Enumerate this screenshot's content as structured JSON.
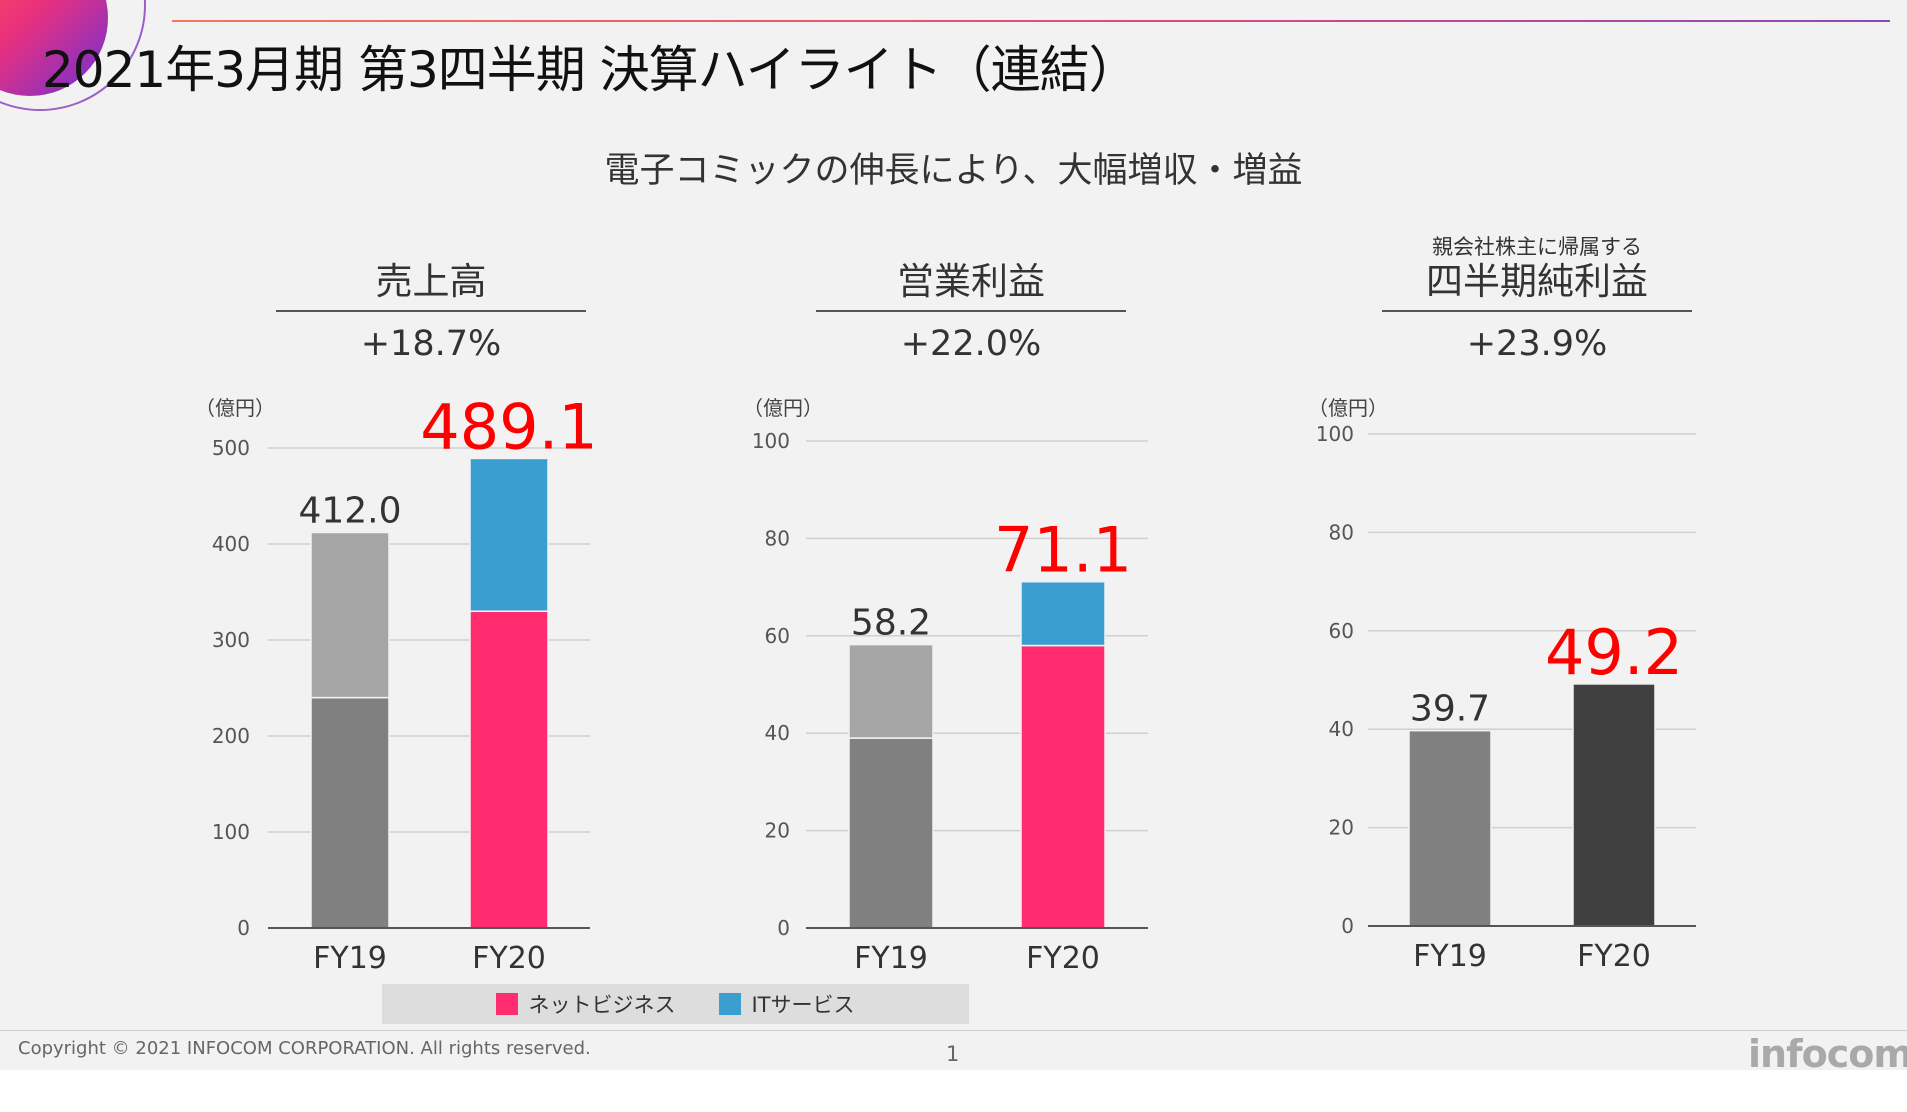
{
  "slide_title": "2021年3月期 第3四半期  決算ハイライト（連結）",
  "subtitle": "電子コミックの伸長により、大幅増収・増益",
  "panels": [
    {
      "pre": "",
      "title": "売上高",
      "growth": "+18.7%"
    },
    {
      "pre": "",
      "title": "営業利益",
      "growth": "+22.0%"
    },
    {
      "pre": "親会社株主に帰属する",
      "title": "四半期純利益",
      "growth": "+23.9%"
    }
  ],
  "colors": {
    "net_business": "#ff2d6f",
    "it_services": "#3a9ed0",
    "fy19_lower": "#808080",
    "fy19_upper": "#a6a6a6",
    "fy20_total": "#404040",
    "highlight": "#ff0000"
  },
  "legend": [
    {
      "label": "ネットビジネス",
      "color": "#ff2d6f"
    },
    {
      "label": "ITサービス",
      "color": "#3a9ed0"
    }
  ],
  "chart_data": [
    {
      "type": "bar",
      "stacked": true,
      "title": "売上高",
      "unit_label": "（億円）",
      "categories": [
        "FY19",
        "FY20"
      ],
      "series": [
        {
          "name": "ネットビジネス",
          "values": [
            240,
            330
          ]
        },
        {
          "name": "ITサービス",
          "values": [
            172,
            159.1
          ]
        }
      ],
      "totals": [
        "412.0",
        "489.1"
      ],
      "ylim": [
        0,
        500
      ],
      "yticks": [
        0,
        100,
        200,
        300,
        400,
        500
      ],
      "grid": true
    },
    {
      "type": "bar",
      "stacked": true,
      "title": "営業利益",
      "unit_label": "（億円）",
      "categories": [
        "FY19",
        "FY20"
      ],
      "series": [
        {
          "name": "ネットビジネス",
          "values": [
            39,
            58
          ]
        },
        {
          "name": "ITサービス",
          "values": [
            19.2,
            13.1
          ]
        }
      ],
      "totals": [
        "58.2",
        "71.1"
      ],
      "ylim": [
        0,
        100
      ],
      "yticks": [
        0,
        20,
        40,
        60,
        80,
        100
      ],
      "grid": true
    },
    {
      "type": "bar",
      "stacked": false,
      "title": "四半期純利益",
      "unit_label": "（億円）",
      "categories": [
        "FY19",
        "FY20"
      ],
      "series": [
        {
          "name": "",
          "values": [
            39.7,
            49.2
          ]
        }
      ],
      "totals": [
        "39.7",
        "49.2"
      ],
      "ylim": [
        0,
        100
      ],
      "yticks": [
        0,
        20,
        40,
        60,
        80,
        100
      ],
      "grid": true
    }
  ],
  "footer": {
    "copyright": "Copyright © 2021 INFOCOM CORPORATION. All rights reserved.",
    "page": "1",
    "logo": "infocom"
  }
}
